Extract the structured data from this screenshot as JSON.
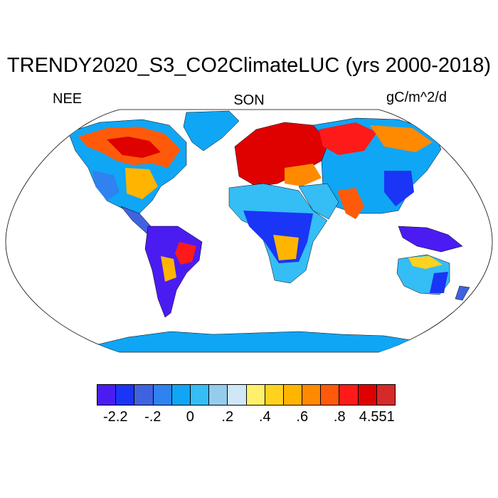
{
  "title": "TRENDY2020_S3_CO2ClimateLUC (yrs 2000-2018)",
  "variable": "NEE",
  "season": "SON",
  "units": "gC/m^2/d",
  "colorbar": {
    "colors": [
      "#4b1cf2",
      "#1a35f5",
      "#3f62e0",
      "#2f82f0",
      "#0fa6f5",
      "#35bdf5",
      "#95ccec",
      "#cfe7f7",
      "#fff06b",
      "#ffd21f",
      "#ffb400",
      "#ff8a00",
      "#ff5a0a",
      "#ff1a1a",
      "#df0000",
      "#d42a2a"
    ],
    "tick_labels": [
      "-2.2",
      "-.2",
      "0",
      ".2",
      ".4",
      ".6",
      ".8",
      "4.551"
    ]
  }
}
